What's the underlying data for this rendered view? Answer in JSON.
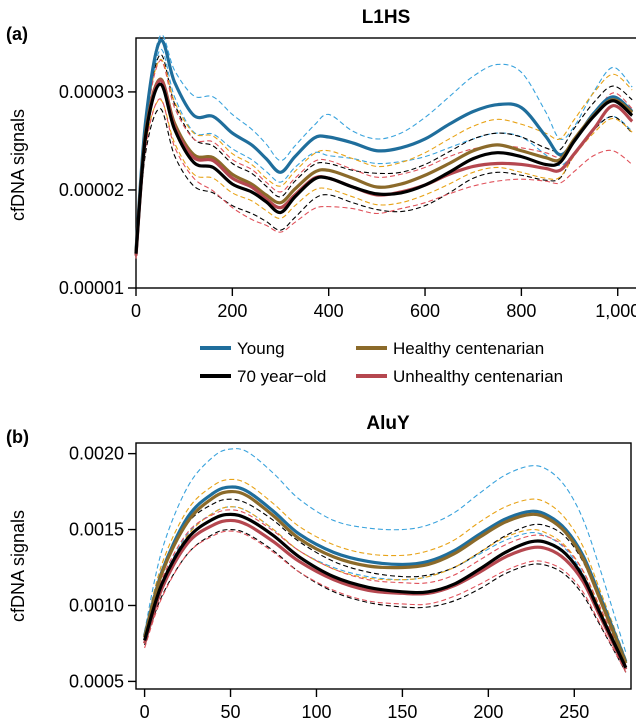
{
  "chart_data": [
    {
      "type": "line",
      "panel_label": "(a)",
      "title": "L1HS",
      "ylabel": "cfDNA signals",
      "xlim": [
        0,
        1040
      ],
      "ylim": [
        1e-05,
        3.55e-05
      ],
      "x_ticks": [
        0,
        200,
        400,
        600,
        800,
        1000
      ],
      "x_tick_labels": [
        "0",
        "200",
        "400",
        "600",
        "800",
        "1,000"
      ],
      "y_ticks": [
        1e-05,
        2e-05,
        3e-05
      ],
      "y_tick_labels": [
        "0.00001",
        "0.00002",
        "0.00003"
      ],
      "x": [
        0,
        20,
        50,
        80,
        120,
        160,
        200,
        240,
        270,
        300,
        330,
        370,
        400,
        450,
        500,
        550,
        600,
        650,
        700,
        750,
        800,
        850,
        880,
        910,
        950,
        990,
        1030
      ],
      "series": [
        {
          "name": "Young",
          "color": "#1f6e9c",
          "values": [
            1.38e-05,
            2.7e-05,
            3.52e-05,
            3.1e-05,
            2.76e-05,
            2.75e-05,
            2.58e-05,
            2.46e-05,
            2.32e-05,
            2.18e-05,
            2.34e-05,
            2.53e-05,
            2.54e-05,
            2.48e-05,
            2.4e-05,
            2.43e-05,
            2.52e-05,
            2.67e-05,
            2.8e-05,
            2.87e-05,
            2.84e-05,
            2.55e-05,
            2.36e-05,
            2.5e-05,
            2.78e-05,
            2.95e-05,
            2.8e-05
          ],
          "upper": [
            1.42e-05,
            2.75e-05,
            3.57e-05,
            3.22e-05,
            2.96e-05,
            2.95e-05,
            2.77e-05,
            2.62e-05,
            2.47e-05,
            2.3e-05,
            2.45e-05,
            2.66e-05,
            2.77e-05,
            2.6e-05,
            2.52e-05,
            2.58e-05,
            2.74e-05,
            2.95e-05,
            3.16e-05,
            3.28e-05,
            3.2e-05,
            2.8e-05,
            2.52e-05,
            2.65e-05,
            3e-05,
            3.25e-05,
            3.05e-05
          ],
          "lower": [
            1.34e-05,
            2.62e-05,
            3.43e-05,
            2.95e-05,
            2.59e-05,
            2.57e-05,
            2.42e-05,
            2.31e-05,
            2.19e-05,
            2.08e-05,
            2.23e-05,
            2.38e-05,
            2.35e-05,
            2.32e-05,
            2.27e-05,
            2.29e-05,
            2.34e-05,
            2.43e-05,
            2.52e-05,
            2.58e-05,
            2.54e-05,
            2.36e-05,
            2.25e-05,
            2.38e-05,
            2.62e-05,
            2.75e-05,
            2.6e-05
          ]
        },
        {
          "name": "70 year−old",
          "color": "#000000",
          "values": [
            1.35e-05,
            2.55e-05,
            3.08e-05,
            2.62e-05,
            2.28e-05,
            2.23e-05,
            2.06e-05,
            1.98e-05,
            1.88e-05,
            1.77e-05,
            1.93e-05,
            2.11e-05,
            2.12e-05,
            2.03e-05,
            1.96e-05,
            1.97e-05,
            2.05e-05,
            2.18e-05,
            2.32e-05,
            2.38e-05,
            2.34e-05,
            2.26e-05,
            2.28e-05,
            2.5e-05,
            2.75e-05,
            2.91e-05,
            2.76e-05
          ],
          "upper": [
            1.38e-05,
            2.66e-05,
            3.38e-05,
            2.88e-05,
            2.52e-05,
            2.45e-05,
            2.27e-05,
            2.17e-05,
            2.04e-05,
            1.93e-05,
            2.09e-05,
            2.26e-05,
            2.27e-05,
            2.2e-05,
            2.17e-05,
            2.18e-05,
            2.26e-05,
            2.39e-05,
            2.52e-05,
            2.58e-05,
            2.54e-05,
            2.43e-05,
            2.41e-05,
            2.63e-05,
            2.89e-05,
            3.06e-05,
            2.92e-05
          ],
          "lower": [
            1.32e-05,
            2.38e-05,
            2.83e-05,
            2.35e-05,
            2.04e-05,
            1.97e-05,
            1.84e-05,
            1.76e-05,
            1.68e-05,
            1.59e-05,
            1.72e-05,
            1.91e-05,
            1.95e-05,
            1.87e-05,
            1.8e-05,
            1.78e-05,
            1.84e-05,
            1.97e-05,
            2.12e-05,
            2.18e-05,
            2.15e-05,
            2.1e-05,
            2.12e-05,
            2.36e-05,
            2.61e-05,
            2.75e-05,
            2.58e-05
          ]
        },
        {
          "name": "Healthy centenarian",
          "color": "#8b6a2a",
          "values": [
            1.36e-05,
            2.58e-05,
            3.13e-05,
            2.68e-05,
            2.36e-05,
            2.33e-05,
            2.16e-05,
            2.06e-05,
            1.95e-05,
            1.87e-05,
            2.01e-05,
            2.18e-05,
            2.2e-05,
            2.12e-05,
            2.03e-05,
            2.06e-05,
            2.15e-05,
            2.27e-05,
            2.4e-05,
            2.46e-05,
            2.4e-05,
            2.33e-05,
            2.31e-05,
            2.52e-05,
            2.76e-05,
            2.92e-05,
            2.79e-05
          ],
          "upper": [
            1.39e-05,
            2.68e-05,
            3.33e-05,
            2.9e-05,
            2.58e-05,
            2.55e-05,
            2.37e-05,
            2.26e-05,
            2.12e-05,
            2.04e-05,
            2.19e-05,
            2.37e-05,
            2.4e-05,
            2.32e-05,
            2.24e-05,
            2.28e-05,
            2.38e-05,
            2.52e-05,
            2.65e-05,
            2.72e-05,
            2.67e-05,
            2.58e-05,
            2.52e-05,
            2.72e-05,
            2.99e-05,
            3.18e-05,
            3.02e-05
          ],
          "lower": [
            1.33e-05,
            2.46e-05,
            2.92e-05,
            2.48e-05,
            2.16e-05,
            2.12e-05,
            1.97e-05,
            1.89e-05,
            1.79e-05,
            1.71e-05,
            1.84e-05,
            2e-05,
            2.01e-05,
            1.93e-05,
            1.85e-05,
            1.87e-05,
            1.95e-05,
            2.06e-05,
            2.18e-05,
            2.23e-05,
            2.18e-05,
            2.12e-05,
            2.13e-05,
            2.35e-05,
            2.58e-05,
            2.73e-05,
            2.59e-05
          ]
        },
        {
          "name": "Unhealthy centenarian",
          "color": "#b5474f",
          "values": [
            1.33e-05,
            2.55e-05,
            3.12e-05,
            2.65e-05,
            2.33e-05,
            2.3e-05,
            2.12e-05,
            2.03e-05,
            1.91e-05,
            1.82e-05,
            1.95e-05,
            2.12e-05,
            2.12e-05,
            2.03e-05,
            1.95e-05,
            1.98e-05,
            2.05e-05,
            2.16e-05,
            2.24e-05,
            2.27e-05,
            2.26e-05,
            2.22e-05,
            2.2e-05,
            2.37e-05,
            2.62e-05,
            2.86e-05,
            2.7e-05
          ],
          "upper": [
            1.36e-05,
            2.64e-05,
            3.32e-05,
            2.84e-05,
            2.52e-05,
            2.49e-05,
            2.31e-05,
            2.21e-05,
            2.08e-05,
            1.98e-05,
            2.12e-05,
            2.29e-05,
            2.3e-05,
            2.21e-05,
            2.13e-05,
            2.16e-05,
            2.23e-05,
            2.34e-05,
            2.42e-05,
            2.45e-05,
            2.43e-05,
            2.38e-05,
            2.34e-05,
            2.5e-05,
            2.75e-05,
            2.99e-05,
            2.83e-05
          ],
          "lower": [
            1.3e-05,
            2.43e-05,
            2.93e-05,
            2.44e-05,
            2.12e-05,
            1.99e-05,
            1.82e-05,
            1.7e-05,
            1.64e-05,
            1.57e-05,
            1.67e-05,
            1.81e-05,
            1.83e-05,
            1.81e-05,
            1.76e-05,
            1.81e-05,
            1.87e-05,
            1.96e-05,
            2.04e-05,
            2.09e-05,
            2.11e-05,
            2.09e-05,
            2.07e-05,
            2.19e-05,
            2.35e-05,
            2.4e-05,
            2.26e-05
          ]
        }
      ]
    },
    {
      "type": "line",
      "panel_label": "(b)",
      "title": "AluY",
      "ylabel": "cfDNA signals",
      "xlim": [
        -5,
        283
      ],
      "ylim": [
        0.00045,
        0.00207
      ],
      "x_ticks": [
        0,
        50,
        100,
        150,
        200,
        250
      ],
      "x_tick_labels": [
        "0",
        "50",
        "100",
        "150",
        "200",
        "250"
      ],
      "y_ticks": [
        0.0005,
        0.001,
        0.0015,
        0.002
      ],
      "y_tick_labels": [
        "0.0005",
        "0.0010",
        "0.0015",
        "0.0020"
      ],
      "x": [
        0,
        10,
        25,
        40,
        50,
        60,
        75,
        90,
        110,
        130,
        150,
        165,
        180,
        195,
        210,
        225,
        235,
        245,
        255,
        265,
        280
      ],
      "series": [
        {
          "name": "Young",
          "color": "#1f6e9c",
          "values": [
            0.0008,
            0.00122,
            0.00158,
            0.00174,
            0.00178,
            0.00175,
            0.00162,
            0.00147,
            0.00135,
            0.00129,
            0.00127,
            0.00129,
            0.00136,
            0.00147,
            0.00157,
            0.00162,
            0.00159,
            0.0015,
            0.00133,
            0.00106,
            0.00063
          ],
          "upper": [
            0.00083,
            0.00136,
            0.00178,
            0.00198,
            0.00203,
            0.00201,
            0.00187,
            0.0017,
            0.00156,
            0.00151,
            0.0015,
            0.00153,
            0.00161,
            0.00174,
            0.00186,
            0.00192,
            0.00189,
            0.00178,
            0.00157,
            0.00124,
            0.00069
          ],
          "lower": [
            0.00077,
            0.00115,
            0.00147,
            0.00161,
            0.00165,
            0.00162,
            0.0015,
            0.00136,
            0.00125,
            0.00119,
            0.00117,
            0.00119,
            0.00125,
            0.00134,
            0.00143,
            0.00148,
            0.00145,
            0.00137,
            0.00121,
            0.00097,
            0.0006
          ]
        },
        {
          "name": "70 year−old",
          "color": "#000000",
          "values": [
            0.00077,
            0.00114,
            0.00144,
            0.00157,
            0.0016,
            0.00157,
            0.00146,
            0.00132,
            0.00119,
            0.00112,
            0.00109,
            0.00109,
            0.00114,
            0.00124,
            0.00135,
            0.00142,
            0.00141,
            0.00134,
            0.00119,
            0.00095,
            0.00059
          ],
          "upper": [
            0.0008,
            0.00121,
            0.00154,
            0.00167,
            0.0017,
            0.00167,
            0.00156,
            0.00142,
            0.00129,
            0.00122,
            0.00119,
            0.0012,
            0.00125,
            0.00135,
            0.00146,
            0.00153,
            0.00152,
            0.00145,
            0.00129,
            0.00103,
            0.00062
          ],
          "lower": [
            0.00074,
            0.00106,
            0.00134,
            0.00147,
            0.0015,
            0.00147,
            0.00136,
            0.00122,
            0.00109,
            0.00102,
            0.00099,
            0.00099,
            0.00103,
            0.00111,
            0.00121,
            0.00127,
            0.00126,
            0.0012,
            0.00107,
            0.00087,
            0.00056
          ]
        },
        {
          "name": "Healthy centenarian",
          "color": "#8b6a2a",
          "values": [
            0.00079,
            0.00121,
            0.00155,
            0.00171,
            0.00175,
            0.00172,
            0.00159,
            0.00144,
            0.00132,
            0.00126,
            0.00125,
            0.00127,
            0.00134,
            0.00145,
            0.00155,
            0.0016,
            0.00157,
            0.00148,
            0.00131,
            0.00104,
            0.00062
          ],
          "upper": [
            0.00082,
            0.00127,
            0.00163,
            0.00179,
            0.00183,
            0.0018,
            0.00167,
            0.00152,
            0.0014,
            0.00134,
            0.00133,
            0.00136,
            0.00143,
            0.00155,
            0.00165,
            0.0017,
            0.00167,
            0.00157,
            0.00139,
            0.0011,
            0.00065
          ],
          "lower": [
            0.00076,
            0.00114,
            0.00146,
            0.00161,
            0.00165,
            0.00162,
            0.0015,
            0.00136,
            0.00124,
            0.00118,
            0.00117,
            0.00119,
            0.00125,
            0.00135,
            0.00145,
            0.0015,
            0.00147,
            0.00139,
            0.00123,
            0.00098,
            0.00059
          ]
        },
        {
          "name": "Unhealthy centenarian",
          "color": "#b5474f",
          "values": [
            0.00075,
            0.00111,
            0.00141,
            0.00153,
            0.00156,
            0.00153,
            0.00142,
            0.00129,
            0.00117,
            0.0011,
            0.00108,
            0.00108,
            0.00113,
            0.00122,
            0.00132,
            0.00138,
            0.00137,
            0.0013,
            0.00116,
            0.00093,
            0.00058
          ],
          "upper": [
            0.00078,
            0.00117,
            0.00148,
            0.0016,
            0.00163,
            0.0016,
            0.00149,
            0.00136,
            0.00124,
            0.00117,
            0.00115,
            0.00115,
            0.0012,
            0.0013,
            0.0014,
            0.00146,
            0.00145,
            0.00138,
            0.00123,
            0.00099,
            0.00061
          ],
          "lower": [
            0.00072,
            0.00105,
            0.00134,
            0.00146,
            0.00149,
            0.00146,
            0.00135,
            0.00122,
            0.0011,
            0.00103,
            0.00101,
            0.00101,
            0.00106,
            0.00114,
            0.00123,
            0.00129,
            0.00128,
            0.00122,
            0.00109,
            0.00088,
            0.00056
          ]
        }
      ]
    }
  ]
}
